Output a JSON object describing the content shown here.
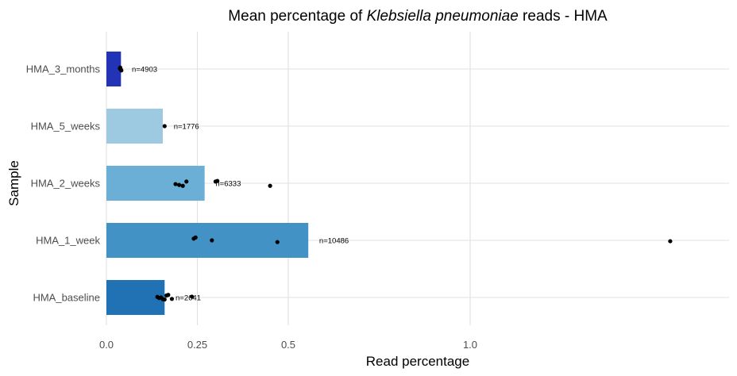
{
  "chart_data": {
    "type": "bar",
    "orientation": "horizontal",
    "title": "Mean percentage of Klebsiella pneumoniae reads - HMA",
    "title_parts": [
      {
        "text": "Mean percentage of ",
        "italic": false
      },
      {
        "text": "Klebsiella pneumoniae",
        "italic": true
      },
      {
        "text": " reads - HMA",
        "italic": false
      }
    ],
    "xlabel": "Read percentage",
    "ylabel": "Sample",
    "xlim": [
      0,
      1.71
    ],
    "x_ticks": [
      {
        "value": 0.0,
        "label": "0.0"
      },
      {
        "value": 0.25,
        "label": "0.25"
      },
      {
        "value": 0.5,
        "label": "0.5"
      },
      {
        "value": 1.0,
        "label": "1.0"
      }
    ],
    "grid": true,
    "legend": "none",
    "categories": [
      "HMA_3_months",
      "HMA_5_weeks",
      "HMA_2_weeks",
      "HMA_1_week",
      "HMA_baseline"
    ],
    "values": [
      0.04,
      0.155,
      0.27,
      0.555,
      0.16
    ],
    "colors": [
      "#2233b5",
      "#9ecae1",
      "#6baed6",
      "#4292c6",
      "#2171b5"
    ],
    "n_labels": [
      "n=4903",
      "n=1776",
      "n=6333",
      "n=10486",
      "n=2641"
    ],
    "n_label_x": [
      0.07,
      0.185,
      0.3,
      0.585,
      0.19
    ],
    "points": [
      [
        {
          "x": 0.037,
          "y": 0.02
        },
        {
          "x": 0.04,
          "y": -0.02
        },
        {
          "x": 0.038,
          "y": 0.05
        },
        {
          "x": 0.041,
          "y": -0.05
        }
      ],
      [
        {
          "x": 0.16,
          "y": 0.0
        }
      ],
      [
        {
          "x": 0.19,
          "y": -0.03
        },
        {
          "x": 0.2,
          "y": -0.06
        },
        {
          "x": 0.21,
          "y": -0.09
        },
        {
          "x": 0.22,
          "y": 0.06
        },
        {
          "x": 0.3,
          "y": 0.06
        },
        {
          "x": 0.305,
          "y": 0.08
        },
        {
          "x": 0.45,
          "y": -0.09
        }
      ],
      [
        {
          "x": 0.24,
          "y": 0.06
        },
        {
          "x": 0.245,
          "y": 0.1
        },
        {
          "x": 0.29,
          "y": 0.0
        },
        {
          "x": 0.47,
          "y": -0.06
        },
        {
          "x": 1.55,
          "y": -0.03
        }
      ],
      [
        {
          "x": 0.14,
          "y": 0.02
        },
        {
          "x": 0.145,
          "y": -0.02
        },
        {
          "x": 0.15,
          "y": 0.0
        },
        {
          "x": 0.155,
          "y": -0.06
        },
        {
          "x": 0.16,
          "y": -0.07
        },
        {
          "x": 0.165,
          "y": 0.07
        },
        {
          "x": 0.17,
          "y": 0.09
        },
        {
          "x": 0.18,
          "y": -0.05
        },
        {
          "x": 0.235,
          "y": 0.03
        }
      ]
    ]
  }
}
